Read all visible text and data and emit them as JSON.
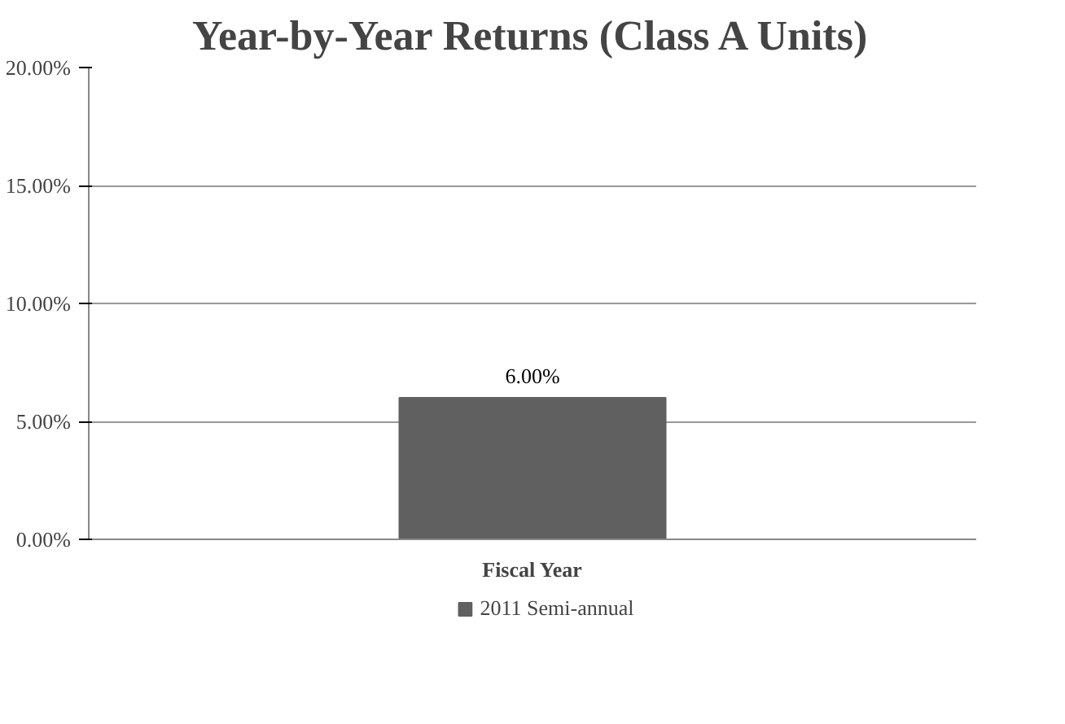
{
  "chart_data": {
    "type": "bar",
    "title": "Year-by-Year Returns (Class A Units)",
    "xlabel": "Fiscal Year",
    "categories": [
      null
    ],
    "series": [
      {
        "name": "2011 Semi-annual",
        "color": "#606060",
        "values": [
          6
        ],
        "value_labels": [
          "6.00%"
        ]
      }
    ],
    "ylim": [
      0,
      20
    ],
    "yticks": [
      {
        "value": 0,
        "label": "0.00%"
      },
      {
        "value": 5,
        "label": "5.00%"
      },
      {
        "value": 10,
        "label": "10.00%"
      },
      {
        "value": 15,
        "label": "15.00%"
      },
      {
        "value": 20,
        "label": "20.00%"
      }
    ],
    "grid": "y",
    "legend": "bottom"
  }
}
